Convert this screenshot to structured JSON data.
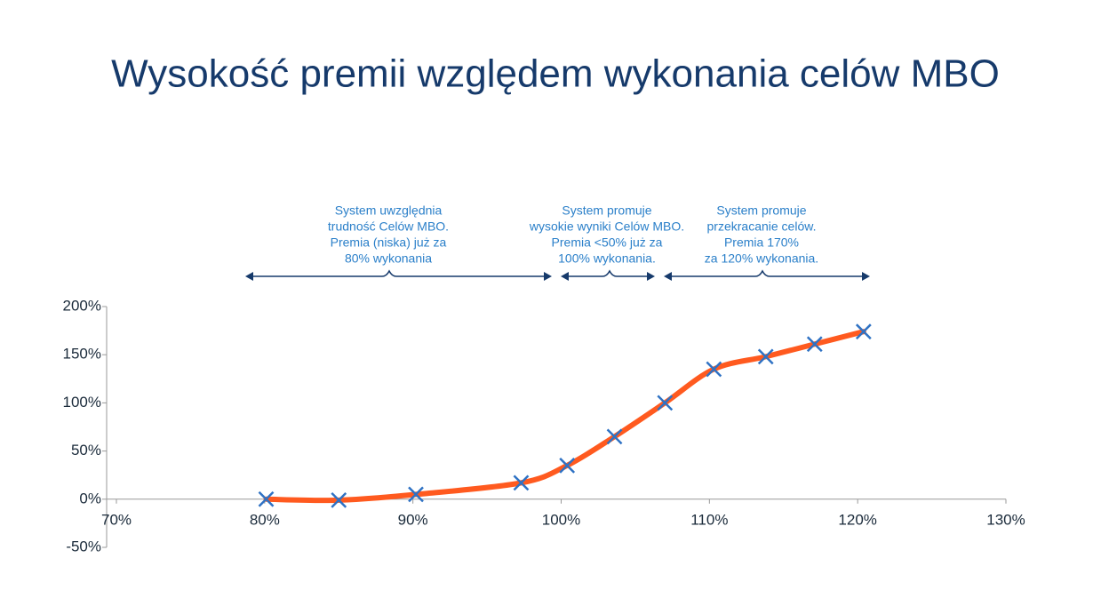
{
  "chart_data": {
    "type": "line",
    "title": "Wysokość premii względem wykonania celów MBO",
    "annotations": [
      [
        "System uwzględnia",
        "trudność Celów MBO.",
        "Premia (niska) już za",
        "80% wykonania"
      ],
      [
        "System promuje",
        "wysokie wyniki Celów MBO.",
        "Premia <50% już za",
        "100% wykonania."
      ],
      [
        "System promuje",
        "przekracanie celów.",
        "Premia 170%",
        "za 120% wykonania."
      ]
    ],
    "x": [
      80.1,
      85,
      90.2,
      97.3,
      100.4,
      103.6,
      107,
      110.3,
      113.8,
      117.1,
      120.4
    ],
    "series": [
      {
        "values": [
          0,
          -1,
          5,
          17,
          35,
          65,
          100,
          135,
          148,
          161,
          174
        ],
        "color": "#ff5a1f",
        "marker_color": "#2f72c4"
      }
    ],
    "xlim": [
      70,
      130
    ],
    "xticks": [
      {
        "value": 70,
        "label": "70%"
      },
      {
        "value": 80,
        "label": "80%"
      },
      {
        "value": 90,
        "label": "90%"
      },
      {
        "value": 100,
        "label": "100%"
      },
      {
        "value": 110,
        "label": "110%"
      },
      {
        "value": 120,
        "label": "120%"
      },
      {
        "value": 130,
        "label": "130%"
      }
    ],
    "ylim": [
      -50,
      200
    ],
    "yticks": [
      {
        "value": -50,
        "label": "-50%"
      },
      {
        "value": 0,
        "label": "0%"
      },
      {
        "value": 50,
        "label": "50%"
      },
      {
        "value": 100,
        "label": "100%"
      },
      {
        "value": 150,
        "label": "150%"
      },
      {
        "value": 200,
        "label": "200%"
      }
    ]
  }
}
